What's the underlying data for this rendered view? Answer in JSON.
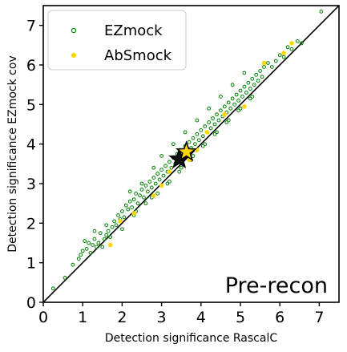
{
  "chart_data": {
    "type": "scatter",
    "xlabel": "Detection significance RascalC",
    "ylabel": "Detection significance EZmock cov",
    "xlim": [
      0,
      7.5
    ],
    "ylim": [
      0,
      7.5
    ],
    "xticks": [
      "0",
      "1",
      "2",
      "3",
      "4",
      "5",
      "6",
      "7"
    ],
    "yticks": [
      "0",
      "1",
      "2",
      "3",
      "4",
      "5",
      "6",
      "7"
    ],
    "grid": false,
    "legend_position": "top-left",
    "annotation": "Pre-recon",
    "diagonal_line": true,
    "colors": {
      "ezmock": "#008000",
      "absmock": "#FFD700",
      "star_fill": "#FFD700",
      "star_dark": "#111111"
    },
    "series": [
      {
        "name": "EZmock",
        "marker": "hollow-circle",
        "points": [
          [
            0.25,
            0.35
          ],
          [
            0.55,
            0.62
          ],
          [
            0.75,
            0.95
          ],
          [
            0.9,
            1.1
          ],
          [
            0.95,
            1.2
          ],
          [
            1.05,
            1.55
          ],
          [
            1.1,
            1.35
          ],
          [
            1.15,
            1.5
          ],
          [
            1.2,
            1.25
          ],
          [
            1.25,
            1.45
          ],
          [
            1.3,
            1.6
          ],
          [
            1.35,
            1.4
          ],
          [
            1.4,
            1.5
          ],
          [
            1.45,
            1.75
          ],
          [
            1.5,
            1.4
          ],
          [
            1.55,
            1.6
          ],
          [
            1.6,
            1.7
          ],
          [
            1.65,
            1.8
          ],
          [
            1.7,
            1.65
          ],
          [
            1.75,
            1.9
          ],
          [
            1.8,
            2.05
          ],
          [
            1.85,
            1.95
          ],
          [
            1.9,
            2.2
          ],
          [
            1.95,
            2.1
          ],
          [
            2.0,
            2.3
          ],
          [
            2.05,
            2.15
          ],
          [
            2.1,
            2.45
          ],
          [
            2.15,
            2.35
          ],
          [
            2.2,
            2.55
          ],
          [
            2.25,
            2.4
          ],
          [
            2.3,
            2.6
          ],
          [
            2.35,
            2.75
          ],
          [
            2.4,
            2.5
          ],
          [
            2.45,
            2.7
          ],
          [
            2.5,
            2.85
          ],
          [
            2.55,
            2.65
          ],
          [
            2.6,
            2.95
          ],
          [
            2.65,
            2.8
          ],
          [
            2.7,
            3.05
          ],
          [
            2.75,
            2.9
          ],
          [
            2.8,
            3.15
          ],
          [
            2.85,
            3.0
          ],
          [
            2.9,
            3.25
          ],
          [
            2.95,
            3.1
          ],
          [
            3.0,
            3.35
          ],
          [
            3.05,
            3.2
          ],
          [
            3.1,
            3.45
          ],
          [
            3.15,
            3.3
          ],
          [
            3.2,
            3.55
          ],
          [
            3.25,
            3.4
          ],
          [
            3.3,
            3.65
          ],
          [
            3.35,
            3.5
          ],
          [
            3.4,
            3.75
          ],
          [
            3.45,
            3.6
          ],
          [
            3.5,
            3.85
          ],
          [
            3.55,
            3.7
          ],
          [
            3.6,
            3.95
          ],
          [
            3.65,
            3.8
          ],
          [
            3.7,
            4.05
          ],
          [
            3.75,
            3.9
          ],
          [
            3.8,
            4.15
          ],
          [
            3.85,
            4.0
          ],
          [
            3.9,
            4.25
          ],
          [
            3.95,
            4.1
          ],
          [
            4.0,
            4.35
          ],
          [
            4.05,
            4.2
          ],
          [
            4.1,
            4.45
          ],
          [
            4.15,
            4.3
          ],
          [
            4.2,
            4.55
          ],
          [
            4.25,
            4.4
          ],
          [
            4.3,
            4.65
          ],
          [
            4.35,
            4.5
          ],
          [
            4.4,
            4.75
          ],
          [
            4.45,
            4.6
          ],
          [
            4.5,
            4.85
          ],
          [
            4.55,
            4.7
          ],
          [
            4.6,
            4.95
          ],
          [
            4.65,
            4.8
          ],
          [
            4.7,
            5.05
          ],
          [
            4.75,
            4.9
          ],
          [
            4.8,
            5.15
          ],
          [
            4.85,
            5.0
          ],
          [
            4.9,
            5.25
          ],
          [
            4.95,
            5.1
          ],
          [
            5.0,
            5.35
          ],
          [
            5.05,
            5.2
          ],
          [
            5.1,
            5.45
          ],
          [
            5.15,
            5.3
          ],
          [
            5.2,
            5.55
          ],
          [
            5.25,
            5.4
          ],
          [
            5.3,
            5.65
          ],
          [
            5.35,
            5.5
          ],
          [
            5.4,
            5.75
          ],
          [
            5.45,
            5.6
          ],
          [
            5.5,
            5.85
          ],
          [
            5.55,
            5.7
          ],
          [
            5.6,
            5.95
          ],
          [
            5.7,
            6.05
          ],
          [
            5.8,
            5.95
          ],
          [
            5.9,
            6.1
          ],
          [
            6.0,
            6.25
          ],
          [
            6.1,
            6.2
          ],
          [
            6.2,
            6.45
          ],
          [
            6.3,
            6.4
          ],
          [
            6.45,
            6.6
          ],
          [
            6.55,
            6.55
          ],
          [
            7.05,
            7.35
          ],
          [
            2.0,
            1.85
          ],
          [
            2.3,
            2.2
          ],
          [
            2.6,
            2.5
          ],
          [
            2.9,
            2.75
          ],
          [
            3.2,
            3.05
          ],
          [
            3.5,
            3.4
          ],
          [
            3.8,
            3.7
          ],
          [
            4.1,
            4.0
          ],
          [
            4.4,
            4.3
          ],
          [
            4.7,
            4.6
          ],
          [
            5.0,
            4.9
          ],
          [
            5.3,
            5.2
          ],
          [
            2.5,
            3.0
          ],
          [
            2.2,
            2.8
          ],
          [
            2.8,
            3.4
          ],
          [
            3.0,
            3.7
          ],
          [
            3.3,
            4.0
          ],
          [
            3.6,
            4.3
          ],
          [
            3.9,
            4.6
          ],
          [
            4.2,
            4.9
          ],
          [
            4.5,
            5.2
          ],
          [
            4.8,
            5.5
          ],
          [
            5.1,
            5.8
          ],
          [
            1.6,
            1.95
          ],
          [
            1.3,
            1.8
          ],
          [
            1.0,
            1.3
          ],
          [
            2.35,
            2.3
          ],
          [
            2.75,
            2.65
          ],
          [
            3.15,
            3.0
          ],
          [
            3.45,
            3.3
          ],
          [
            3.75,
            3.6
          ],
          [
            4.05,
            3.95
          ],
          [
            4.35,
            4.25
          ],
          [
            4.65,
            4.55
          ],
          [
            4.95,
            4.85
          ],
          [
            5.25,
            5.15
          ]
        ]
      },
      {
        "name": "AbSmock",
        "marker": "filled-circle",
        "points": [
          [
            1.7,
            1.45
          ],
          [
            1.95,
            2.05
          ],
          [
            2.3,
            2.25
          ],
          [
            2.8,
            2.7
          ],
          [
            3.0,
            2.95
          ],
          [
            3.2,
            3.3
          ],
          [
            3.5,
            3.55
          ],
          [
            3.7,
            3.6
          ],
          [
            3.9,
            3.85
          ],
          [
            4.15,
            4.3
          ],
          [
            4.6,
            4.75
          ],
          [
            5.1,
            4.95
          ],
          [
            5.6,
            6.05
          ],
          [
            6.1,
            6.3
          ],
          [
            6.3,
            6.55
          ]
        ]
      }
    ],
    "stars": [
      {
        "label": "",
        "x": 3.45,
        "y": 3.62,
        "style": "dark-filled"
      },
      {
        "label": "",
        "x": 3.63,
        "y": 3.8,
        "style": "yellow-filled"
      }
    ]
  }
}
